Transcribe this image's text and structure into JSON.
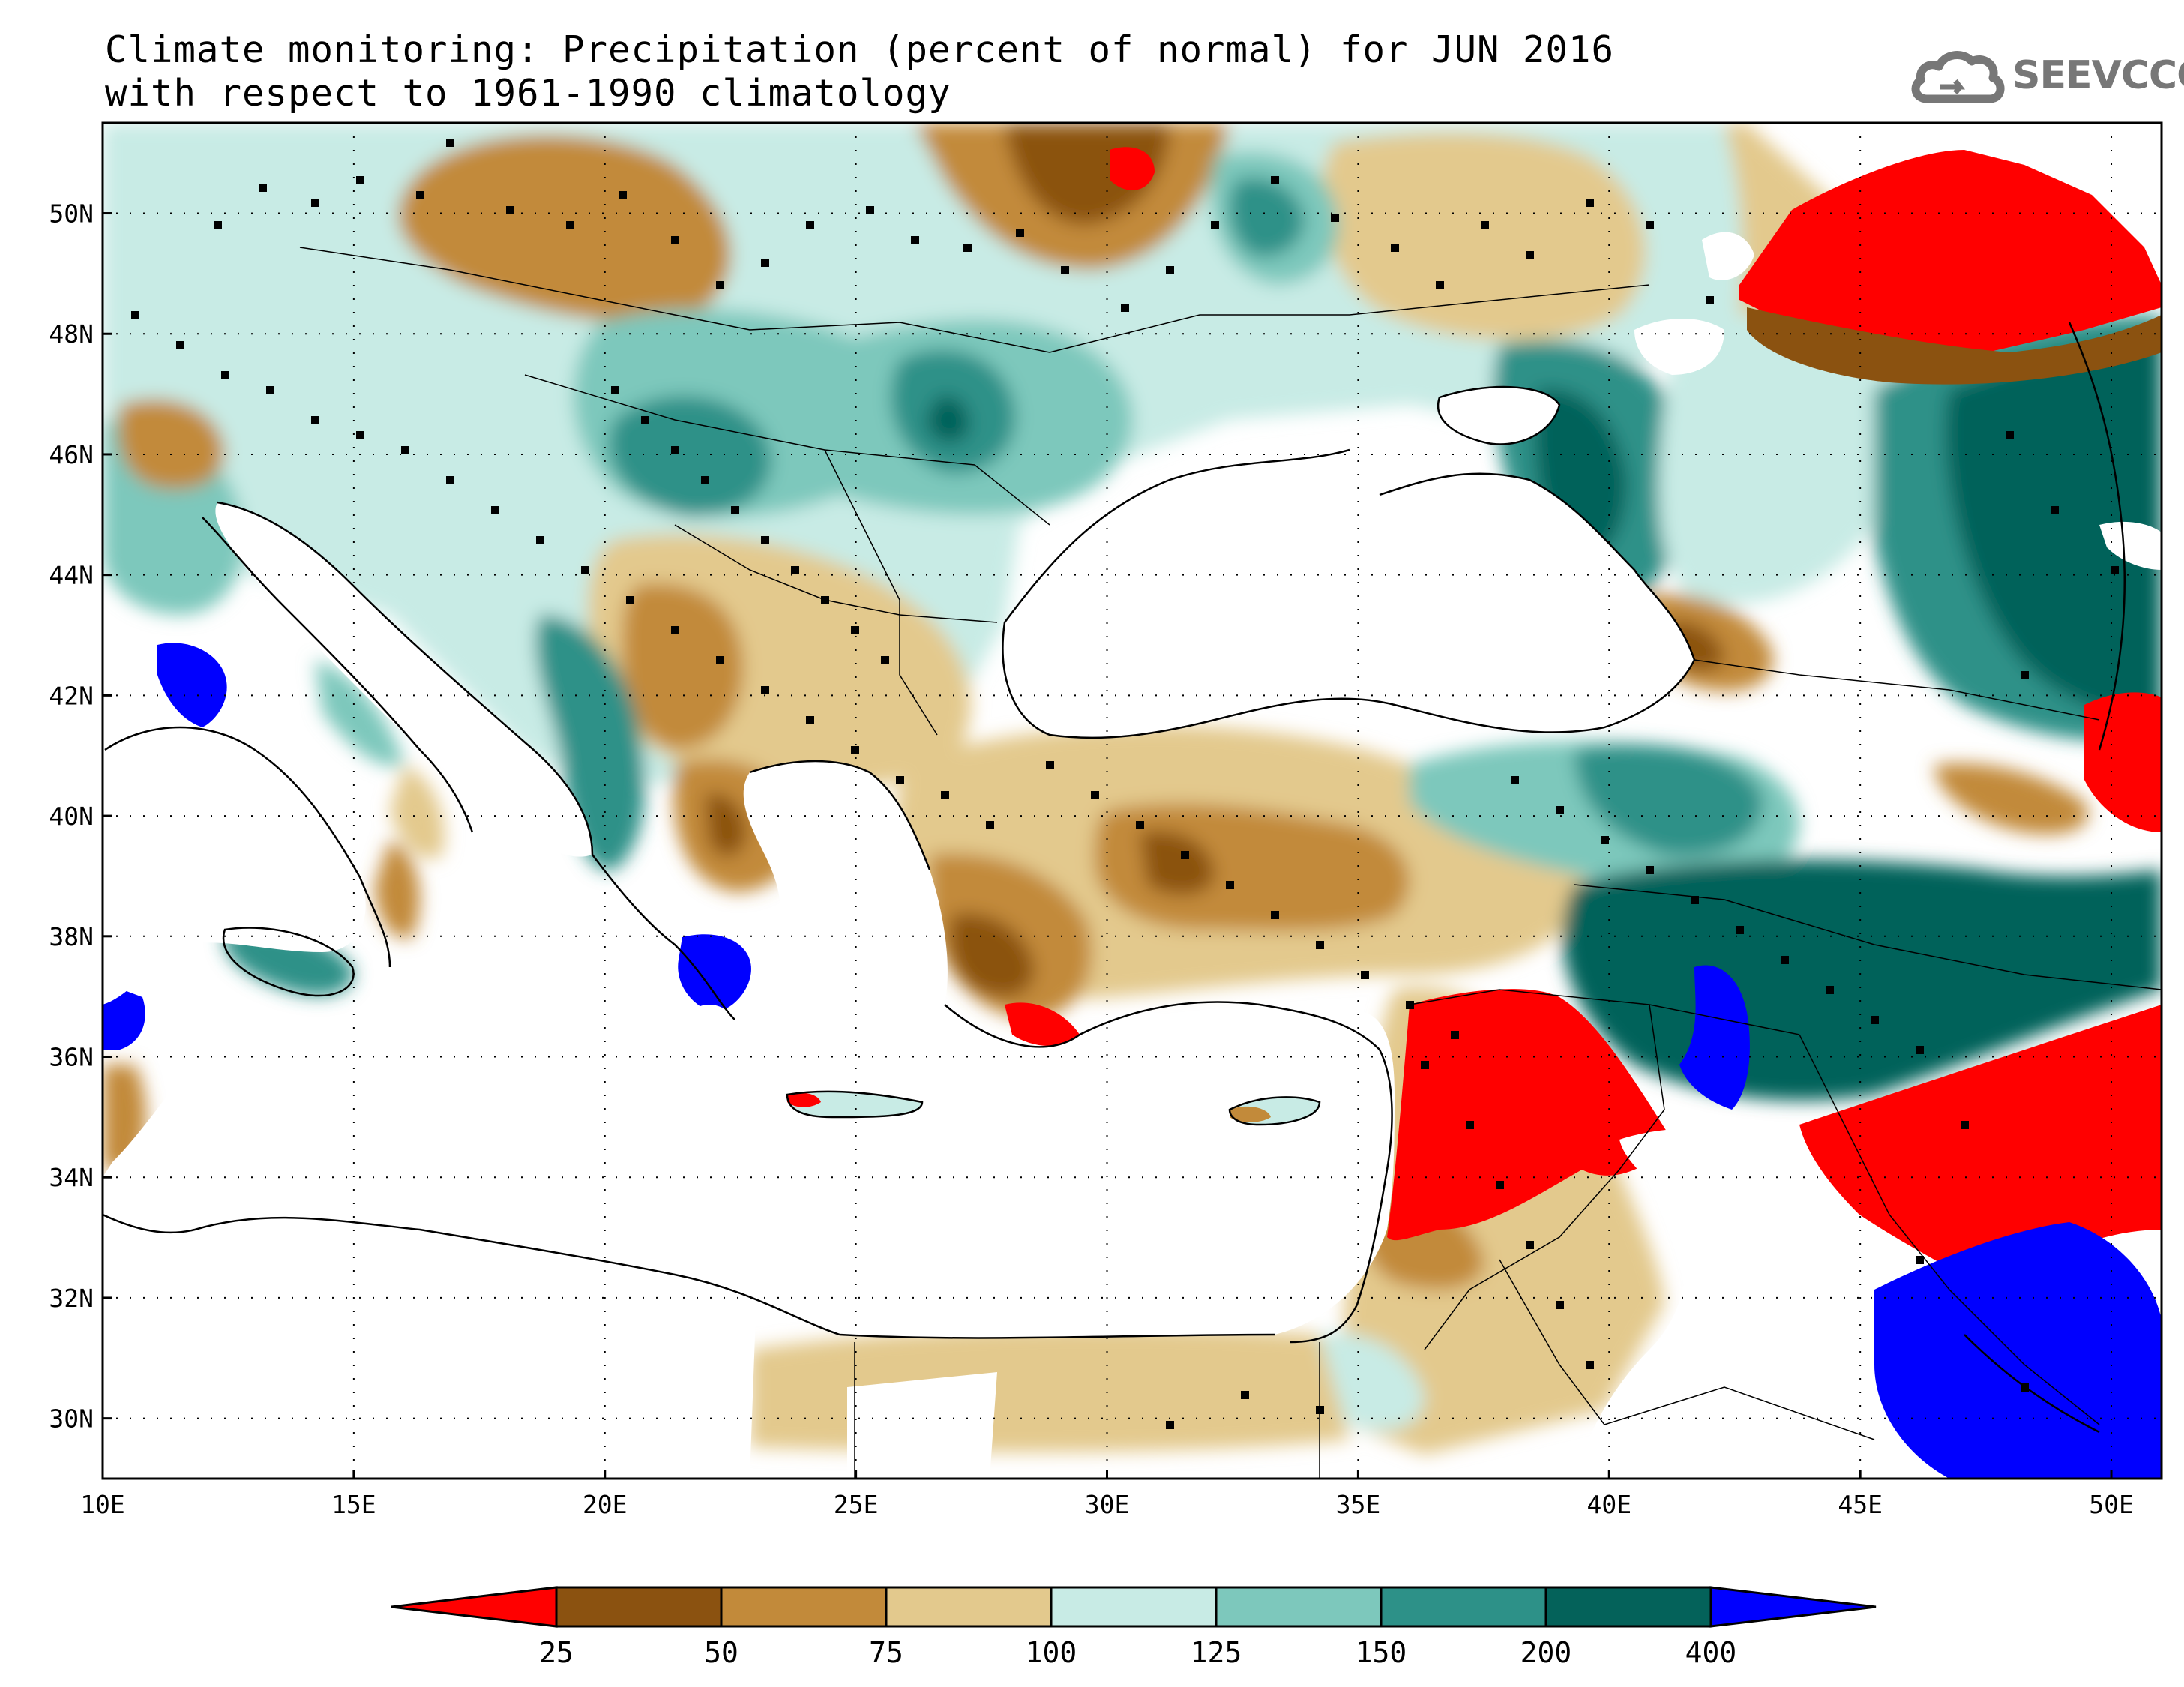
{
  "title": {
    "line1": "Climate monitoring: Precipitation (percent of normal) for JUN 2016",
    "line2": "with respect to 1961-1990 climatology"
  },
  "logo": {
    "text": "SEEVCCC",
    "icon": "cloud-icon"
  },
  "map": {
    "lon_range": [
      10,
      51
    ],
    "lat_range": [
      29,
      51.5
    ],
    "x_ticks": [
      "10E",
      "15E",
      "20E",
      "25E",
      "30E",
      "35E",
      "40E",
      "45E",
      "50E"
    ],
    "y_ticks": [
      "30N",
      "32N",
      "34N",
      "36N",
      "38N",
      "40N",
      "42N",
      "44N",
      "46N",
      "48N",
      "50N"
    ],
    "grid": "dotted"
  },
  "colorbar": {
    "labels": [
      "25",
      "50",
      "75",
      "100",
      "125",
      "150",
      "200",
      "400"
    ],
    "colors": [
      "#ff0000",
      "#8b5210",
      "#c28a3a",
      "#e3c98d",
      "#c8ebe5",
      "#7dc8bc",
      "#2d9188",
      "#04625a",
      "#0000ff"
    ],
    "extends": "both"
  }
}
